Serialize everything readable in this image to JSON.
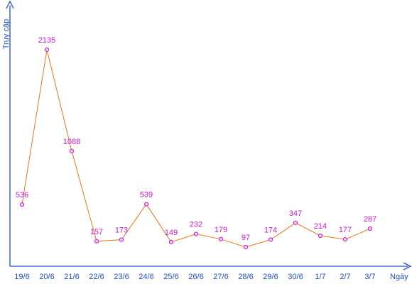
{
  "chart_data": {
    "type": "line",
    "title": "",
    "xlabel": "Ngày",
    "ylabel": "Truy cập",
    "categories": [
      "19/6",
      "20/6",
      "21/6",
      "22/6",
      "23/6",
      "24/6",
      "25/6",
      "26/6",
      "27/6",
      "28/6",
      "29/6",
      "30/6",
      "1/7",
      "2/7",
      "3/7"
    ],
    "values": [
      536,
      2135,
      1088,
      157,
      173,
      539,
      149,
      232,
      179,
      97,
      174,
      347,
      214,
      177,
      287
    ],
    "ylim": [
      0,
      2300
    ],
    "grid": false,
    "legend": "none",
    "colors": {
      "axis": "#1f4fd0",
      "line": "#e8781e",
      "marker": "#c51bd1",
      "labels": "#c51bd1"
    }
  }
}
